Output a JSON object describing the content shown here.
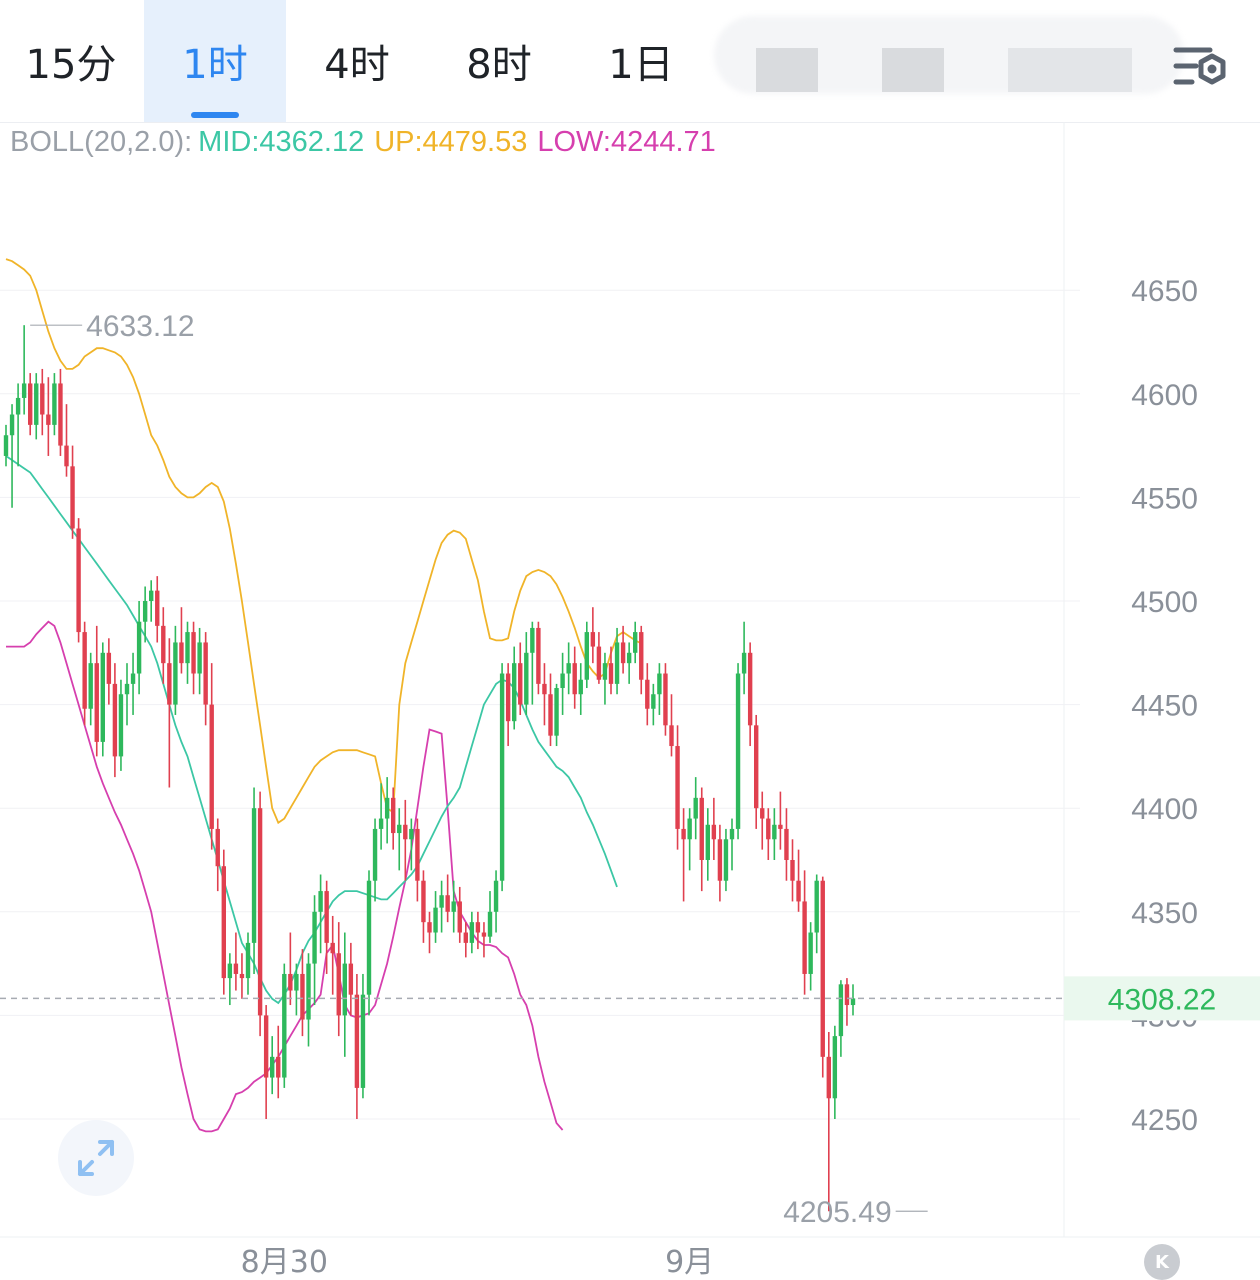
{
  "tabs": [
    {
      "label": "15分",
      "active": false
    },
    {
      "label": "1时",
      "active": true
    },
    {
      "label": "4时",
      "active": false
    },
    {
      "label": "8时",
      "active": false
    },
    {
      "label": "1日",
      "active": false
    }
  ],
  "icons": {
    "settings": "settings-gear-icon",
    "expand": "expand-arrows-icon",
    "kline": "kline-k-icon"
  },
  "k_label": "K",
  "legend": {
    "name": "BOLL(20,2.0):",
    "mid_label": "MID:",
    "mid_value": "4362.12",
    "up_label": "UP:",
    "up_value": "4479.53",
    "low_label": "LOW:",
    "low_value": "4244.71"
  },
  "colors": {
    "up_candle": "#2eb85c",
    "down_candle": "#e0404f",
    "mid_line": "#3cc7a5",
    "upper_band": "#f0b429",
    "lower_band": "#d63fae",
    "last_price": "#2eb85c",
    "tab_active": "#2e86f0"
  },
  "chart_data": {
    "type": "candlestick",
    "indicator": "BOLL(20,2.0)",
    "ylim": [
      4195,
      4730
    ],
    "y_ticks": [
      "4650",
      "4600",
      "4550",
      "4500",
      "4450",
      "4400",
      "4350",
      "4300",
      "4250"
    ],
    "x_labels": [
      {
        "label": "8月30",
        "index": 46
      },
      {
        "label": "9月",
        "index": 113
      }
    ],
    "grid": true,
    "high_marker": {
      "label": "4633.12",
      "value": 4633.12,
      "index": 3
    },
    "low_marker": {
      "label": "4205.49",
      "value": 4205.49,
      "index": 153
    },
    "last_price": {
      "label": "4308.22",
      "value": 4308.22
    },
    "candles_ohlc": [
      [
        4570,
        4585,
        4565,
        4580
      ],
      [
        4580,
        4595,
        4545,
        4590
      ],
      [
        4590,
        4605,
        4565,
        4598
      ],
      [
        4598,
        4633.12,
        4590,
        4605
      ],
      [
        4605,
        4610,
        4580,
        4585
      ],
      [
        4585,
        4610,
        4578,
        4605
      ],
      [
        4605,
        4612,
        4580,
        4590
      ],
      [
        4590,
        4608,
        4570,
        4585
      ],
      [
        4585,
        4610,
        4580,
        4605
      ],
      [
        4605,
        4612,
        4570,
        4575
      ],
      [
        4575,
        4595,
        4560,
        4565
      ],
      [
        4565,
        4575,
        4530,
        4535
      ],
      [
        4535,
        4540,
        4480,
        4485
      ],
      [
        4485,
        4490,
        4440,
        4448
      ],
      [
        4448,
        4475,
        4440,
        4470
      ],
      [
        4470,
        4488,
        4425,
        4432
      ],
      [
        4432,
        4480,
        4425,
        4475
      ],
      [
        4475,
        4482,
        4450,
        4460
      ],
      [
        4460,
        4470,
        4415,
        4425
      ],
      [
        4425,
        4462,
        4418,
        4455
      ],
      [
        4455,
        4470,
        4440,
        4460
      ],
      [
        4460,
        4475,
        4445,
        4465
      ],
      [
        4465,
        4500,
        4455,
        4490
      ],
      [
        4490,
        4507,
        4480,
        4500
      ],
      [
        4500,
        4510,
        4490,
        4505
      ],
      [
        4505,
        4512,
        4480,
        4488
      ],
      [
        4488,
        4497,
        4460,
        4470
      ],
      [
        4470,
        4482,
        4410,
        4450
      ],
      [
        4450,
        4488,
        4445,
        4480
      ],
      [
        4480,
        4497,
        4465,
        4470
      ],
      [
        4470,
        4490,
        4460,
        4485
      ],
      [
        4485,
        4490,
        4455,
        4465
      ],
      [
        4465,
        4487,
        4455,
        4480
      ],
      [
        4480,
        4485,
        4440,
        4450
      ],
      [
        4450,
        4470,
        4380,
        4390
      ],
      [
        4390,
        4395,
        4360,
        4372
      ],
      [
        4372,
        4380,
        4310,
        4318
      ],
      [
        4318,
        4330,
        4305,
        4325
      ],
      [
        4325,
        4340,
        4312,
        4320
      ],
      [
        4320,
        4330,
        4308,
        4318
      ],
      [
        4318,
        4340,
        4310,
        4335
      ],
      [
        4335,
        4410,
        4320,
        4400
      ],
      [
        4400,
        4408,
        4290,
        4300
      ],
      [
        4300,
        4305,
        4250,
        4270
      ],
      [
        4270,
        4290,
        4262,
        4280
      ],
      [
        4280,
        4295,
        4260,
        4270
      ],
      [
        4270,
        4325,
        4265,
        4320
      ],
      [
        4320,
        4340,
        4305,
        4312
      ],
      [
        4312,
        4325,
        4300,
        4320
      ],
      [
        4320,
        4332,
        4290,
        4298
      ],
      [
        4298,
        4330,
        4285,
        4325
      ],
      [
        4325,
        4358,
        4305,
        4350
      ],
      [
        4350,
        4368,
        4330,
        4360
      ],
      [
        4360,
        4365,
        4320,
        4335
      ],
      [
        4335,
        4348,
        4310,
        4330
      ],
      [
        4330,
        4345,
        4290,
        4300
      ],
      [
        4300,
        4340,
        4280,
        4325
      ],
      [
        4325,
        4335,
        4300,
        4310
      ],
      [
        4310,
        4320,
        4250,
        4265
      ],
      [
        4265,
        4320,
        4260,
        4310
      ],
      [
        4310,
        4370,
        4300,
        4365
      ],
      [
        4365,
        4395,
        4355,
        4390
      ],
      [
        4390,
        4412,
        4380,
        4395
      ],
      [
        4395,
        4415,
        4383,
        4405
      ],
      [
        4405,
        4410,
        4380,
        4388
      ],
      [
        4388,
        4400,
        4370,
        4392
      ],
      [
        4392,
        4404,
        4365,
        4385
      ],
      [
        4385,
        4395,
        4370,
        4390
      ],
      [
        4390,
        4395,
        4355,
        4365
      ],
      [
        4365,
        4370,
        4335,
        4345
      ],
      [
        4345,
        4350,
        4330,
        4340
      ],
      [
        4340,
        4360,
        4335,
        4352
      ],
      [
        4352,
        4365,
        4340,
        4358
      ],
      [
        4358,
        4368,
        4345,
        4350
      ],
      [
        4350,
        4365,
        4340,
        4355
      ],
      [
        4355,
        4362,
        4335,
        4340
      ],
      [
        4340,
        4345,
        4328,
        4335
      ],
      [
        4335,
        4350,
        4330,
        4345
      ],
      [
        4345,
        4350,
        4332,
        4340
      ],
      [
        4340,
        4345,
        4328,
        4338
      ],
      [
        4338,
        4360,
        4335,
        4350
      ],
      [
        4350,
        4370,
        4340,
        4365
      ],
      [
        4365,
        4470,
        4360,
        4465
      ],
      [
        4465,
        4470,
        4430,
        4442
      ],
      [
        4442,
        4478,
        4438,
        4470
      ],
      [
        4470,
        4480,
        4445,
        4450
      ],
      [
        4450,
        4485,
        4445,
        4475
      ],
      [
        4475,
        4490,
        4450,
        4487
      ],
      [
        4487,
        4490,
        4455,
        4460
      ],
      [
        4460,
        4470,
        4440,
        4455
      ],
      [
        4455,
        4465,
        4430,
        4435
      ],
      [
        4435,
        4460,
        4430,
        4458
      ],
      [
        4458,
        4475,
        4445,
        4465
      ],
      [
        4465,
        4480,
        4455,
        4470
      ],
      [
        4470,
        4478,
        4448,
        4455
      ],
      [
        4455,
        4470,
        4445,
        4462
      ],
      [
        4462,
        4490,
        4458,
        4485
      ],
      [
        4485,
        4497,
        4470,
        4478
      ],
      [
        4478,
        4485,
        4460,
        4462
      ],
      [
        4462,
        4475,
        4450,
        4470
      ],
      [
        4470,
        4478,
        4455,
        4460
      ],
      [
        4460,
        4487,
        4455,
        4480
      ],
      [
        4480,
        4488,
        4465,
        4470
      ],
      [
        4470,
        4480,
        4460,
        4475
      ],
      [
        4475,
        4490,
        4470,
        4485
      ],
      [
        4485,
        4488,
        4455,
        4462
      ],
      [
        4462,
        4470,
        4440,
        4448
      ],
      [
        4448,
        4460,
        4440,
        4455
      ],
      [
        4455,
        4470,
        4445,
        4465
      ],
      [
        4465,
        4470,
        4435,
        4440
      ],
      [
        4440,
        4455,
        4425,
        4430
      ],
      [
        4430,
        4440,
        4380,
        4390
      ],
      [
        4390,
        4400,
        4355,
        4385
      ],
      [
        4385,
        4400,
        4370,
        4395
      ],
      [
        4395,
        4415,
        4385,
        4405
      ],
      [
        4405,
        4410,
        4360,
        4375
      ],
      [
        4375,
        4400,
        4365,
        4392
      ],
      [
        4392,
        4405,
        4375,
        4385
      ],
      [
        4385,
        4392,
        4355,
        4365
      ],
      [
        4365,
        4390,
        4360,
        4385
      ],
      [
        4385,
        4395,
        4370,
        4390
      ],
      [
        4390,
        4470,
        4385,
        4465
      ],
      [
        4465,
        4490,
        4455,
        4475
      ],
      [
        4475,
        4480,
        4430,
        4440
      ],
      [
        4440,
        4445,
        4390,
        4400
      ],
      [
        4400,
        4408,
        4380,
        4395
      ],
      [
        4395,
        4400,
        4375,
        4385
      ],
      [
        4385,
        4400,
        4375,
        4392
      ],
      [
        4392,
        4408,
        4380,
        4390
      ],
      [
        4390,
        4400,
        4365,
        4375
      ],
      [
        4375,
        4385,
        4355,
        4365
      ],
      [
        4365,
        4380,
        4350,
        4355
      ],
      [
        4355,
        4370,
        4310,
        4320
      ],
      [
        4320,
        4345,
        4312,
        4340
      ],
      [
        4340,
        4368,
        4330,
        4365
      ],
      [
        4365,
        4367,
        4270,
        4280
      ],
      [
        4280,
        4292,
        4205.49,
        4260
      ],
      [
        4260,
        4295,
        4250,
        4290
      ],
      [
        4290,
        4317,
        4280,
        4315
      ],
      [
        4315,
        4318,
        4295,
        4305
      ],
      [
        4305,
        4315,
        4300,
        4308.22
      ]
    ],
    "mid_line": [
      4570,
      4568,
      4566,
      4564,
      4562,
      4558,
      4554,
      4550,
      4546,
      4542,
      4538,
      4534,
      4530,
      4526,
      4522,
      4518,
      4514,
      4510,
      4506,
      4502,
      4498,
      4493,
      4488,
      4483,
      4478,
      4470,
      4460,
      4450,
      4440,
      4432,
      4425,
      4415,
      4405,
      4395,
      4385,
      4375,
      4365,
      4355,
      4345,
      4335,
      4330,
      4325,
      4318,
      4312,
      4308,
      4306,
      4310,
      4315,
      4322,
      4330,
      4336,
      4340,
      4345,
      4350,
      4355,
      4358,
      4360,
      4360,
      4360,
      4359,
      4358,
      4357,
      4356,
      4356,
      4359,
      4362,
      4365,
      4368,
      4372,
      4378,
      4384,
      4390,
      4396,
      4401,
      4405,
      4410,
      4420,
      4430,
      4440,
      4450,
      4455,
      4460,
      4462,
      4461,
      4458,
      4452,
      4445,
      4438,
      4432,
      4428,
      4424,
      4420,
      4418,
      4415,
      4410,
      4405,
      4398,
      4392,
      4385,
      4378,
      4370,
      4362
    ],
    "upper_band": [
      4665,
      4664,
      4662,
      4660,
      4657,
      4650,
      4640,
      4630,
      4622,
      4616,
      4612,
      4612,
      4614,
      4618,
      4620,
      4622,
      4622,
      4621,
      4620,
      4618,
      4614,
      4608,
      4600,
      4590,
      4580,
      4575,
      4568,
      4560,
      4555,
      4552,
      4550,
      4550,
      4552,
      4555,
      4557,
      4555,
      4548,
      4535,
      4518,
      4500,
      4480,
      4460,
      4440,
      4420,
      4400,
      4393,
      4395,
      4400,
      4405,
      4410,
      4415,
      4420,
      4423,
      4425,
      4427,
      4428,
      4428,
      4428,
      4428,
      4427,
      4426,
      4425,
      4412,
      4400,
      4398,
      4450,
      4470,
      4480,
      4490,
      4500,
      4510,
      4520,
      4528,
      4532,
      4534,
      4533,
      4530,
      4520,
      4510,
      4495,
      4482,
      4481,
      4481,
      4482,
      4495,
      4505,
      4512,
      4514,
      4515,
      4514,
      4512,
      4508,
      4502,
      4495,
      4487,
      4478,
      4470,
      4466,
      4463,
      4465,
      4475,
      4483,
      4485,
      4483,
      4481,
      4479.53
    ],
    "lower_band": [
      4478,
      4478,
      4478,
      4478,
      4480,
      4484,
      4487,
      4490,
      4488,
      4480,
      4470,
      4460,
      4450,
      4440,
      4430,
      4420,
      4412,
      4405,
      4398,
      4392,
      4385,
      4378,
      4370,
      4360,
      4350,
      4335,
      4320,
      4305,
      4290,
      4275,
      4262,
      4250,
      4245,
      4244,
      4244,
      4245,
      4250,
      4255,
      4262,
      4263,
      4265,
      4268,
      4270,
      4272,
      4276,
      4280,
      4285,
      4290,
      4295,
      4300,
      4303,
      4306,
      4310,
      4330,
      4334,
      4320,
      4305,
      4300,
      4299,
      4300,
      4301,
      4305,
      4315,
      4325,
      4338,
      4352,
      4365,
      4380,
      4400,
      4420,
      4438,
      4437,
      4436,
      4400,
      4360,
      4350,
      4345,
      4340,
      4336,
      4334,
      4334,
      4333,
      4330,
      4328,
      4320,
      4310,
      4305,
      4295,
      4280,
      4268,
      4258,
      4248,
      4244.71
    ]
  }
}
